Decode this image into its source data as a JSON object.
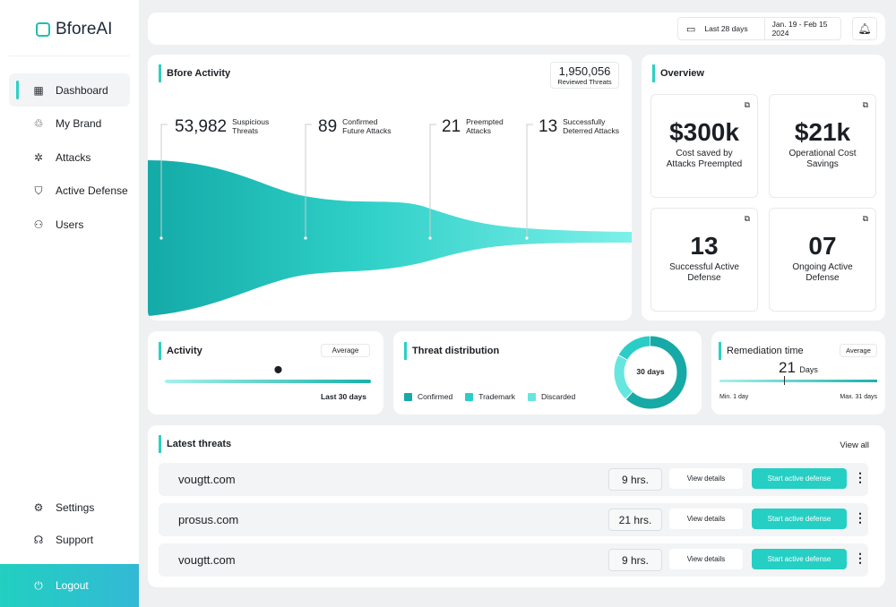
{
  "brand": "BforeAI",
  "sidebar": {
    "items": [
      {
        "label": "Dashboard",
        "icon": "grid-icon"
      },
      {
        "label": "My Brand",
        "icon": "brand-icon"
      },
      {
        "label": "Attacks",
        "icon": "bug-icon"
      },
      {
        "label": "Active Defense",
        "icon": "shield-icon"
      },
      {
        "label": "Users",
        "icon": "users-icon"
      }
    ],
    "bottom": [
      {
        "label": "Settings",
        "icon": "gear-icon"
      },
      {
        "label": "Support",
        "icon": "headset-icon"
      }
    ],
    "logout": "Logout"
  },
  "header": {
    "range": "Last 28 days",
    "dates": "Jan. 19 - Feb 15 2024"
  },
  "activity": {
    "title": "Bfore Activity",
    "reviewed": "1,950,056",
    "reviewed_label": "Reviewed Threats",
    "stats": [
      {
        "n": "53,982",
        "l1": "Suspicious",
        "l2": "Threats"
      },
      {
        "n": "89",
        "l1": "Confirmed",
        "l2": "Future Attacks"
      },
      {
        "n": "21",
        "l1": "Preempted",
        "l2": "Attacks"
      },
      {
        "n": "13",
        "l1": "Successfully",
        "l2": "Deterred Attacks"
      }
    ]
  },
  "overview": {
    "title": "Overview",
    "tiles": [
      {
        "v": "$300k",
        "d": "Cost saved by Attacks Preempted"
      },
      {
        "v": "$21k",
        "d": "Operational Cost Savings"
      },
      {
        "v": "13",
        "d": "Successful Active Defense"
      },
      {
        "v": "07",
        "d": "Ongoing Active Defense"
      }
    ]
  },
  "activity_small": {
    "title": "Activity",
    "select": "Average",
    "caption": "Last 30 days",
    "level": 0.55
  },
  "distribution": {
    "title": "Threat distribution",
    "center": "30 days",
    "legend": [
      {
        "label": "Confirmed",
        "color": "#17a9a6",
        "share": 0.62
      },
      {
        "label": "Trademark",
        "color": "#2ccdc6",
        "share": 0.17
      },
      {
        "label": "Discarded",
        "color": "#66e6df",
        "share": 0.21
      }
    ]
  },
  "remediation": {
    "title": "Remediation time",
    "select": "Average",
    "value": "21",
    "unit": "Days",
    "min": "Min. 1 day",
    "max": "Max. 31 days"
  },
  "threats": {
    "title": "Latest threats",
    "view_all": "View all",
    "view_details": "View details",
    "start": "Start active defense",
    "rows": [
      {
        "domain": "vougtt.com",
        "time": "9 hrs."
      },
      {
        "domain": "prosus.com",
        "time": "21 hrs."
      },
      {
        "domain": "vougtt.com",
        "time": "9 hrs."
      }
    ]
  }
}
